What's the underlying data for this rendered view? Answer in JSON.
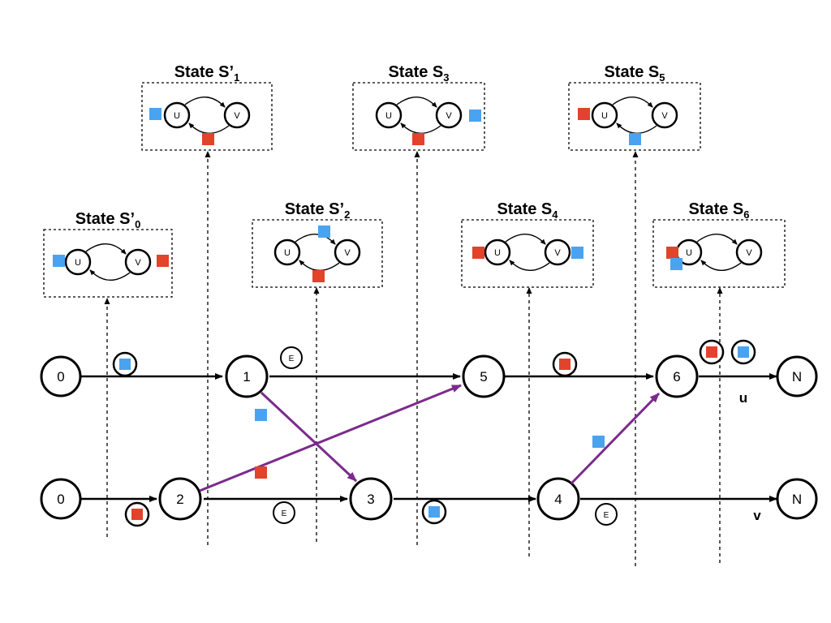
{
  "colors": {
    "blue": "#4aa3f0",
    "red": "#e2432b",
    "purple": "#7b2b8c",
    "black": "#000000"
  },
  "timelines": {
    "u": {
      "label": "u",
      "nodes": [
        "0",
        "1",
        "5",
        "6",
        "N"
      ]
    },
    "v": {
      "label": "v",
      "nodes": [
        "0",
        "2",
        "3",
        "4",
        "N"
      ]
    }
  },
  "states": [
    {
      "id": "s0",
      "prefix": "State S’",
      "sub": "0",
      "node_u": "U",
      "node_v": "V"
    },
    {
      "id": "s1",
      "prefix": "State S’",
      "sub": "1",
      "node_u": "U",
      "node_v": "V"
    },
    {
      "id": "s2",
      "prefix": "State S’",
      "sub": "2",
      "node_u": "U",
      "node_v": "V"
    },
    {
      "id": "s3",
      "prefix": "State S",
      "sub": "3",
      "node_u": "U",
      "node_v": "V"
    },
    {
      "id": "s4",
      "prefix": "State S",
      "sub": "4",
      "node_u": "U",
      "node_v": "V"
    },
    {
      "id": "s5",
      "prefix": "State S",
      "sub": "5",
      "node_u": "U",
      "node_v": "V"
    },
    {
      "id": "s6",
      "prefix": "State S",
      "sub": "6",
      "node_u": "U",
      "node_v": "V"
    }
  ],
  "event_marker": "E"
}
